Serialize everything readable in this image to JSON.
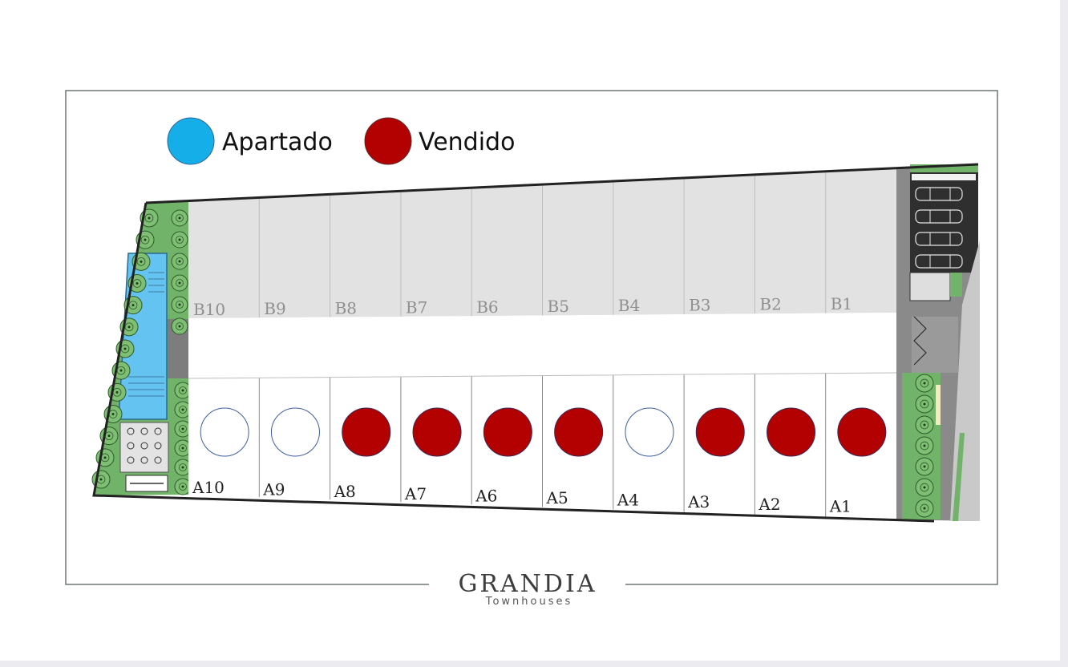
{
  "legend": {
    "items": [
      {
        "label": "Apartado",
        "color": "#15aee8"
      },
      {
        "label": "Vendido",
        "color": "#b30000"
      }
    ]
  },
  "lots_row_b": [
    {
      "label": "B10",
      "status": "none"
    },
    {
      "label": "B9",
      "status": "none"
    },
    {
      "label": "B8",
      "status": "none"
    },
    {
      "label": "B7",
      "status": "none"
    },
    {
      "label": "B6",
      "status": "none"
    },
    {
      "label": "B5",
      "status": "none"
    },
    {
      "label": "B4",
      "status": "none"
    },
    {
      "label": "B3",
      "status": "none"
    },
    {
      "label": "B2",
      "status": "none"
    },
    {
      "label": "B1",
      "status": "none"
    }
  ],
  "lots_row_a": [
    {
      "label": "A10",
      "status": "available"
    },
    {
      "label": "A9",
      "status": "available"
    },
    {
      "label": "A8",
      "status": "sold"
    },
    {
      "label": "A7",
      "status": "sold"
    },
    {
      "label": "A6",
      "status": "sold"
    },
    {
      "label": "A5",
      "status": "sold"
    },
    {
      "label": "A4",
      "status": "available"
    },
    {
      "label": "A3",
      "status": "sold"
    },
    {
      "label": "A2",
      "status": "sold"
    },
    {
      "label": "A1",
      "status": "sold"
    }
  ],
  "status_colors": {
    "sold": "#b30000",
    "reserved": "#15aee8",
    "available": "#ffffff"
  },
  "brand": {
    "name": "GRANDIA",
    "subtitle": "Townhouses"
  }
}
